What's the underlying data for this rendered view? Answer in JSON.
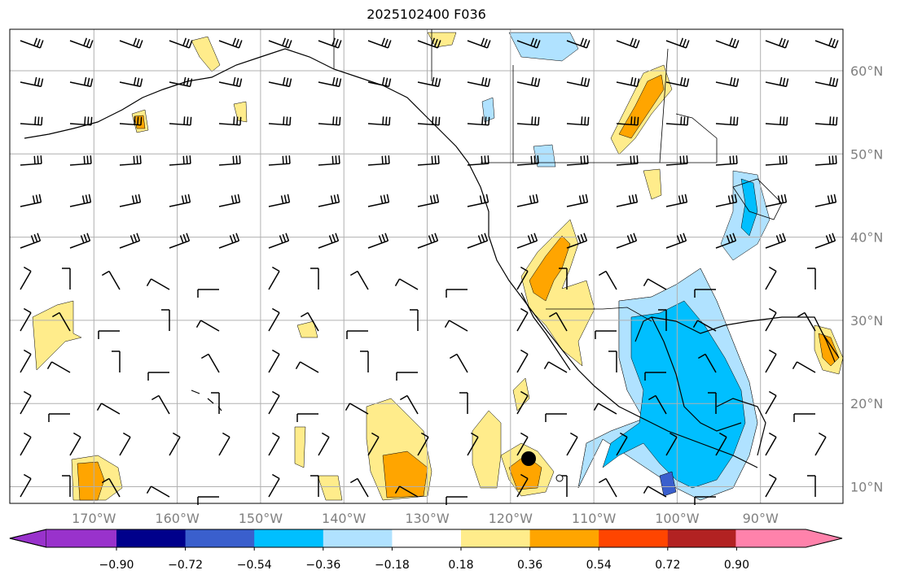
{
  "title": "2025102400 F036",
  "lat_labels": [
    "60°N",
    "50°N",
    "40°N",
    "30°N",
    "20°N",
    "10°N"
  ],
  "lon_labels": [
    "170°W",
    "160°W",
    "150°W",
    "140°W",
    "130°W",
    "120°W",
    "110°W",
    "100°W",
    "90°W"
  ],
  "colorbar": {
    "ticks": [
      "−0.90",
      "−0.72",
      "−0.54",
      "−0.36",
      "−0.18",
      "0.18",
      "0.36",
      "0.54",
      "0.72",
      "0.90"
    ],
    "colors": [
      "#9932cc",
      "#00008b",
      "#3a5fcd",
      "#00bfff",
      "#b0e2ff",
      "#ffffff",
      "#ffec8b",
      "#ffa500",
      "#ff4500",
      "#b22222",
      "#ff82ab"
    ]
  },
  "colors": {
    "grid": "#b0b0b0",
    "coast": "#000000",
    "contour_line": "#000000"
  }
}
